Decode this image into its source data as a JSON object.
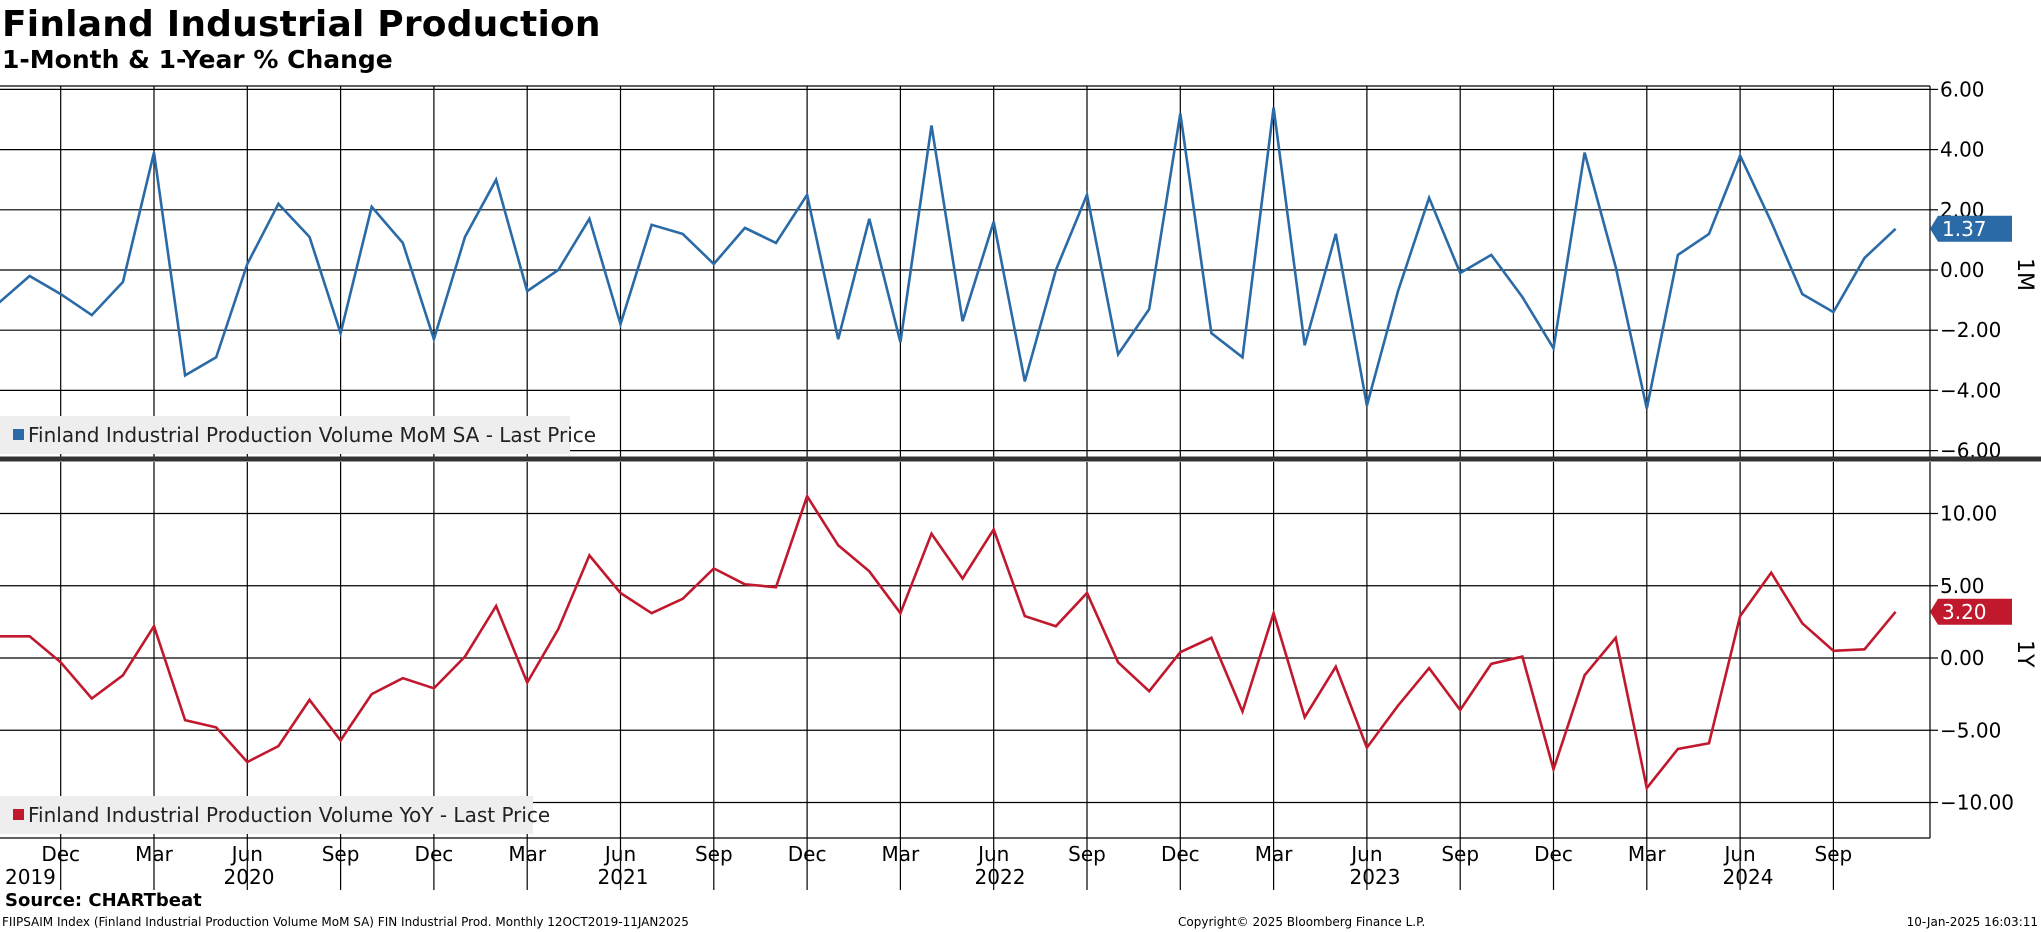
{
  "title": "Finland Industrial Production",
  "subtitle": "1-Month & 1-Year % Change",
  "source": "Source: CHARTbeat",
  "footer": {
    "left": "FIIPSAIM Index (Finland Industrial Production Volume MoM SA) FIN Industrial Prod.  Monthly 12OCT2019-11JAN2025",
    "center": "Copyright© 2025 Bloomberg Finance L.P.",
    "right": "10-Jan-2025 16:03:11"
  },
  "colors": {
    "mom": "#2a6aa6",
    "yoy": "#c0192e",
    "grid": "#000000",
    "separator": "#333333",
    "legend_bg": "#eeeeee"
  },
  "chart_data": [
    {
      "type": "line",
      "panel_label": "1M",
      "x_start": "2019-10",
      "x_end": "2024-12",
      "ylim": [
        -6,
        6
      ],
      "yticks": [
        "6.00",
        "4.00",
        "2.00",
        "0.00",
        "-2.00",
        "-4.00",
        "-6.00"
      ],
      "grid": true,
      "legend_position": "bottom-left",
      "last_value_label": "1.37",
      "series": [
        {
          "name": "Finland Industrial Production Volume MoM SA - Last Price",
          "values": [
            -1.1,
            -0.2,
            -0.8,
            -1.5,
            -0.4,
            3.9,
            -3.5,
            -2.9,
            0.2,
            2.2,
            1.1,
            -2.1,
            2.1,
            0.9,
            -2.3,
            1.1,
            3.0,
            -0.7,
            0.0,
            1.7,
            -1.8,
            1.5,
            1.2,
            0.2,
            1.4,
            0.9,
            2.5,
            -2.3,
            1.7,
            -2.4,
            4.8,
            -1.7,
            1.6,
            -3.7,
            0.0,
            2.5,
            -2.8,
            -1.3,
            5.2,
            -2.1,
            -2.9,
            5.4,
            -2.5,
            1.2,
            -4.5,
            -0.7,
            2.4,
            -0.1,
            0.5,
            -0.9,
            -2.6,
            3.9,
            0.1,
            -4.6,
            0.5,
            1.2,
            3.8,
            1.6,
            -0.8,
            -1.4,
            0.4,
            1.37
          ]
        }
      ]
    },
    {
      "type": "line",
      "panel_label": "1Y",
      "x_start": "2019-10",
      "x_end": "2024-12",
      "ylim": [
        -12.5,
        12.5
      ],
      "yticks": [
        "10.00",
        "5.00",
        "0.00",
        "-5.00",
        "-10.00"
      ],
      "grid": true,
      "legend_position": "bottom-left",
      "last_value_label": "3.20",
      "series": [
        {
          "name": "Finland Industrial Production Volume YoY - Last Price",
          "values": [
            1.5,
            1.5,
            -0.3,
            -2.8,
            -1.2,
            2.2,
            -4.3,
            -4.8,
            -7.2,
            -6.1,
            -2.9,
            -5.7,
            -2.5,
            -1.4,
            -2.1,
            0.1,
            3.6,
            -1.7,
            2.0,
            7.1,
            4.5,
            3.1,
            4.1,
            6.2,
            5.1,
            4.9,
            11.2,
            7.8,
            6.0,
            3.1,
            8.6,
            5.5,
            8.9,
            2.9,
            2.2,
            4.5,
            -0.3,
            -2.3,
            0.4,
            1.4,
            -3.7,
            3.1,
            -4.1,
            -0.6,
            -6.2,
            -3.3,
            -0.7,
            -3.6,
            -0.4,
            0.1,
            -7.7,
            -1.2,
            1.4,
            -9.0,
            -6.3,
            -5.9,
            2.9,
            5.9,
            2.4,
            0.5,
            0.6,
            3.2
          ]
        }
      ]
    }
  ],
  "x_axis": {
    "month_labels": [
      "Dec",
      "Mar",
      "Jun",
      "Sep",
      "Dec",
      "Mar",
      "Jun",
      "Sep",
      "Dec",
      "Mar",
      "Jun",
      "Sep",
      "Dec",
      "Mar",
      "Jun",
      "Sep",
      "Dec",
      "Mar",
      "Jun",
      "Sep"
    ],
    "year_labels": [
      "2019",
      "2020",
      "2021",
      "2022",
      "2023",
      "2024"
    ]
  }
}
